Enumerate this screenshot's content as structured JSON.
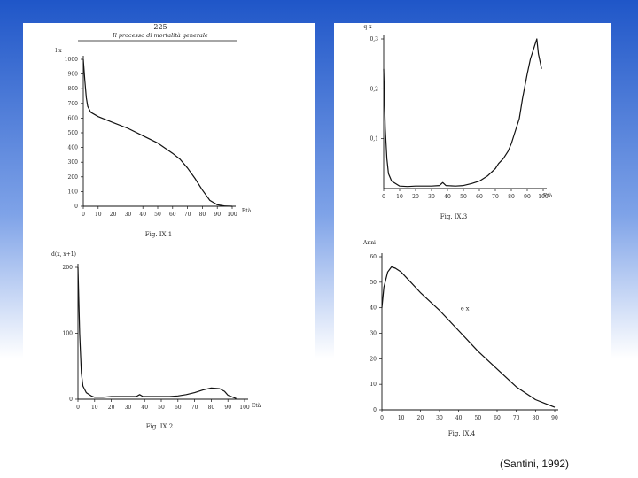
{
  "page": {
    "header": {
      "page_number": "225",
      "running_title": "Il processo di mortalità generale"
    },
    "caption": "(Santini, 1992)"
  },
  "chart_data": [
    {
      "id": "fig1",
      "type": "line",
      "figure_label": "Fig. IX.1",
      "ylabel": "l x",
      "xlabel": "Età",
      "xlim": [
        0,
        100
      ],
      "ylim": [
        0,
        1000
      ],
      "xticks": [
        "0",
        "10",
        "20",
        "30",
        "40",
        "50",
        "60",
        "70",
        "80",
        "90",
        "100"
      ],
      "yticks": [
        "0",
        "100",
        "200",
        "300",
        "400",
        "500",
        "600",
        "700",
        "800",
        "900",
        "1000"
      ],
      "series": [
        {
          "x": [
            0,
            1,
            2,
            3,
            5,
            10,
            20,
            30,
            40,
            50,
            60,
            65,
            70,
            75,
            80,
            85,
            90,
            95,
            100
          ],
          "y": [
            1000,
            860,
            740,
            680,
            640,
            610,
            570,
            530,
            480,
            430,
            360,
            320,
            260,
            190,
            110,
            40,
            10,
            2,
            0
          ]
        }
      ]
    },
    {
      "id": "fig2",
      "type": "line",
      "figure_label": "Fig. IX.2",
      "ylabel": "d(x, x+1)",
      "xlabel": "Età",
      "xlim": [
        0,
        100
      ],
      "ylim": [
        0,
        200
      ],
      "xticks": [
        "0",
        "10",
        "20",
        "30",
        "40",
        "50",
        "60",
        "70",
        "80",
        "90",
        "100"
      ],
      "yticks": [
        "0",
        "100",
        "200"
      ],
      "series": [
        {
          "x": [
            0,
            1,
            2,
            3,
            5,
            8,
            10,
            15,
            20,
            30,
            35,
            37,
            39,
            45,
            55,
            60,
            65,
            70,
            75,
            80,
            85,
            88,
            90,
            95
          ],
          "y": [
            200,
            100,
            40,
            20,
            10,
            5,
            3,
            3,
            4,
            4,
            4,
            7,
            4,
            4,
            4,
            5,
            7,
            10,
            14,
            17,
            16,
            12,
            6,
            1
          ]
        }
      ]
    },
    {
      "id": "fig3",
      "type": "line",
      "figure_label": "Fig. IX.3",
      "ylabel": "q x",
      "xlabel": "Età",
      "xlim": [
        0,
        100
      ],
      "ylim": [
        0,
        0.3
      ],
      "xticks": [
        "0",
        "10",
        "20",
        "30",
        "40",
        "50",
        "60",
        "70",
        "80",
        "90",
        "100"
      ],
      "yticks": [
        "0,1",
        "0,2",
        "0,3"
      ],
      "series": [
        {
          "x": [
            0,
            1,
            2,
            3,
            5,
            10,
            15,
            20,
            30,
            35,
            37,
            39,
            45,
            50,
            55,
            60,
            65,
            70,
            72,
            75,
            78,
            80,
            82,
            85,
            87,
            90,
            92,
            94,
            95,
            96,
            97,
            99
          ],
          "y": [
            0.24,
            0.12,
            0.06,
            0.03,
            0.015,
            0.005,
            0.004,
            0.005,
            0.005,
            0.006,
            0.012,
            0.006,
            0.005,
            0.006,
            0.01,
            0.015,
            0.025,
            0.04,
            0.05,
            0.06,
            0.075,
            0.09,
            0.11,
            0.14,
            0.18,
            0.23,
            0.26,
            0.28,
            0.29,
            0.3,
            0.27,
            0.24
          ]
        }
      ]
    },
    {
      "id": "fig4",
      "type": "line",
      "figure_label": "Fig. IX.4",
      "ylabel": "Anni",
      "xlabel": "",
      "series_label": "e x",
      "xlim": [
        0,
        90
      ],
      "ylim": [
        0,
        60
      ],
      "xticks": [
        "0",
        "10",
        "20",
        "30",
        "40",
        "50",
        "60",
        "70",
        "80",
        "90"
      ],
      "yticks": [
        "0",
        "10",
        "20",
        "30",
        "40",
        "50",
        "60"
      ],
      "series": [
        {
          "x": [
            0,
            1,
            3,
            5,
            7,
            10,
            15,
            20,
            30,
            40,
            50,
            60,
            70,
            80,
            85,
            90
          ],
          "y": [
            40,
            48,
            54,
            56,
            55.5,
            54,
            50,
            46,
            39,
            31,
            23,
            16,
            9,
            4,
            2.5,
            1
          ]
        }
      ]
    }
  ]
}
